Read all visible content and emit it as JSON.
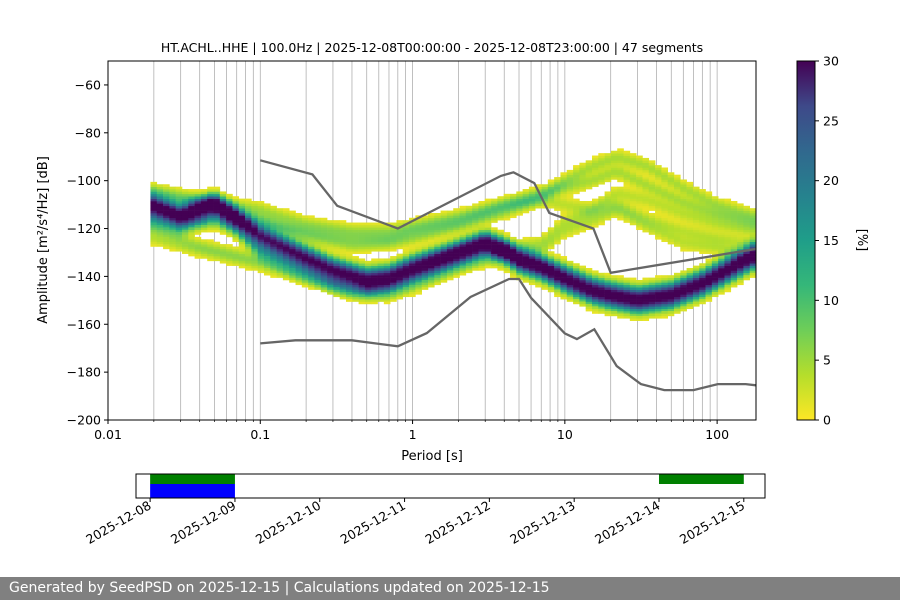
{
  "chart_data": [
    {
      "type": "heatmap",
      "title": "HT.ACHL..HHE | 100.0Hz | 2025-12-08T00:00:00 - 2025-12-08T23:00:00 | 47 segments",
      "xlabel": "Period [s]",
      "ylabel": "Amplitude [m²/s⁴/Hz] [dB]",
      "x_scale": "log",
      "xlim": [
        0.01,
        180
      ],
      "ylim": [
        -200,
        -50
      ],
      "x_ticks": [
        0.01,
        0.1,
        1,
        10,
        100
      ],
      "x_tick_labels": [
        "0.01",
        "0.1",
        "1",
        "10",
        "100"
      ],
      "y_ticks": [
        -60,
        -80,
        -100,
        -120,
        -140,
        -160,
        -180,
        -200
      ],
      "y_tick_labels": [
        "−60",
        "−80",
        "−100",
        "−120",
        "−140",
        "−160",
        "−180",
        "−200"
      ],
      "grid": "vertical",
      "colormap": "viridis_r",
      "colorbar": {
        "label": "[%]",
        "min": 0,
        "max": 30,
        "ticks": [
          0,
          5,
          10,
          15,
          20,
          25,
          30
        ],
        "tick_labels": [
          "0",
          "5",
          "10",
          "15",
          "20",
          "25",
          "30"
        ]
      },
      "density_ridges": [
        {
          "weight": 20,
          "width_db": 2.5,
          "points": [
            [
              0.02,
              -111
            ],
            [
              0.03,
              -115
            ],
            [
              0.05,
              -110
            ],
            [
              0.07,
              -116
            ],
            [
              0.1,
              -124
            ],
            [
              0.2,
              -133
            ],
            [
              0.3,
              -138
            ],
            [
              0.5,
              -142
            ],
            [
              0.7,
              -141
            ],
            [
              1,
              -137
            ],
            [
              2,
              -130
            ],
            [
              3,
              -126
            ],
            [
              4,
              -129
            ],
            [
              5,
              -133
            ],
            [
              7,
              -136
            ],
            [
              10,
              -141
            ],
            [
              15,
              -146
            ],
            [
              20,
              -148
            ],
            [
              30,
              -150
            ],
            [
              50,
              -148
            ],
            [
              80,
              -143
            ],
            [
              120,
              -137
            ],
            [
              180,
              -131
            ]
          ]
        },
        {
          "weight": 14,
          "width_db": 2.5,
          "points": [
            [
              0.02,
              -109
            ],
            [
              0.03,
              -113
            ],
            [
              0.05,
              -108
            ],
            [
              0.07,
              -114
            ],
            [
              0.1,
              -121
            ],
            [
              0.2,
              -130
            ],
            [
              0.3,
              -135
            ],
            [
              0.5,
              -139
            ],
            [
              0.7,
              -138
            ],
            [
              1,
              -134
            ],
            [
              2,
              -128
            ],
            [
              3,
              -124
            ],
            [
              4,
              -127
            ],
            [
              5,
              -131
            ],
            [
              7,
              -134
            ],
            [
              10,
              -138
            ],
            [
              15,
              -143
            ],
            [
              20,
              -145
            ],
            [
              30,
              -147
            ],
            [
              50,
              -145
            ],
            [
              80,
              -140
            ],
            [
              120,
              -134
            ],
            [
              180,
              -128
            ]
          ]
        },
        {
          "weight": 12,
          "width_db": 2.5,
          "points": [
            [
              0.02,
              -116
            ],
            [
              0.03,
              -119
            ],
            [
              0.05,
              -114
            ],
            [
              0.07,
              -120
            ],
            [
              0.1,
              -129
            ],
            [
              0.2,
              -137
            ],
            [
              0.3,
              -142
            ],
            [
              0.5,
              -145
            ],
            [
              0.7,
              -144
            ],
            [
              1,
              -140
            ],
            [
              2,
              -133
            ],
            [
              3,
              -129
            ],
            [
              4,
              -132
            ],
            [
              5,
              -136
            ],
            [
              7,
              -139
            ],
            [
              10,
              -144
            ],
            [
              15,
              -149
            ],
            [
              20,
              -151
            ],
            [
              30,
              -153
            ],
            [
              50,
              -151
            ],
            [
              80,
              -146
            ],
            [
              120,
              -140
            ],
            [
              180,
              -134
            ]
          ]
        },
        {
          "weight": 4,
          "width_db": 2,
          "points": [
            [
              0.02,
              -106
            ],
            [
              0.04,
              -110
            ],
            [
              0.1,
              -116
            ],
            [
              0.2,
              -123
            ],
            [
              0.4,
              -127
            ],
            [
              0.7,
              -126
            ],
            [
              1,
              -124
            ],
            [
              2,
              -119
            ],
            [
              4,
              -113
            ],
            [
              7,
              -107
            ],
            [
              10,
              -100
            ],
            [
              15,
              -94
            ],
            [
              22,
              -90
            ],
            [
              35,
              -94
            ],
            [
              60,
              -103
            ],
            [
              100,
              -110
            ],
            [
              180,
              -115
            ]
          ]
        },
        {
          "weight": 4,
          "width_db": 2,
          "points": [
            [
              0.02,
              -104
            ],
            [
              0.04,
              -108
            ],
            [
              0.1,
              -112
            ],
            [
              0.2,
              -118
            ],
            [
              0.4,
              -121
            ],
            [
              0.7,
              -121
            ],
            [
              1,
              -119
            ],
            [
              2,
              -115
            ],
            [
              4,
              -110
            ],
            [
              7,
              -105
            ],
            [
              10,
              -103
            ],
            [
              15,
              -100
            ],
            [
              22,
              -96
            ],
            [
              35,
              -102
            ],
            [
              60,
              -109
            ],
            [
              100,
              -114
            ],
            [
              180,
              -118
            ]
          ]
        },
        {
          "weight": 3,
          "width_db": 2,
          "points": [
            [
              0.02,
              -120
            ],
            [
              0.04,
              -127
            ],
            [
              0.1,
              -133
            ],
            [
              0.2,
              -140
            ],
            [
              0.4,
              -146
            ],
            [
              0.7,
              -145
            ],
            [
              1,
              -142
            ],
            [
              2,
              -134
            ],
            [
              4,
              -128
            ],
            [
              7,
              -126
            ],
            [
              10,
              -117
            ],
            [
              15,
              -113
            ],
            [
              22,
              -110
            ],
            [
              35,
              -116
            ],
            [
              60,
              -121
            ],
            [
              100,
              -124
            ],
            [
              180,
              -127
            ]
          ]
        },
        {
          "weight": 3,
          "width_db": 2,
          "points": [
            [
              0.02,
              -124
            ],
            [
              0.04,
              -129
            ],
            [
              0.1,
              -135
            ],
            [
              0.2,
              -141
            ],
            [
              0.4,
              -147
            ],
            [
              0.7,
              -148
            ],
            [
              1,
              -145
            ],
            [
              2,
              -137
            ],
            [
              4,
              -131
            ],
            [
              7,
              -129
            ],
            [
              10,
              -121
            ],
            [
              15,
              -117
            ],
            [
              22,
              -112
            ],
            [
              35,
              -119
            ],
            [
              60,
              -126
            ],
            [
              100,
              -128
            ],
            [
              180,
              -133
            ]
          ]
        },
        {
          "weight": 3,
          "width_db": 2,
          "points": [
            [
              0.02,
              -113
            ],
            [
              0.04,
              -117
            ],
            [
              0.1,
              -118
            ],
            [
              0.2,
              -121
            ],
            [
              0.4,
              -124
            ],
            [
              0.7,
              -124
            ],
            [
              1,
              -121
            ],
            [
              2,
              -117
            ],
            [
              4,
              -110
            ],
            [
              7,
              -108
            ],
            [
              10,
              -110
            ],
            [
              15,
              -112
            ],
            [
              22,
              -105
            ],
            [
              35,
              -108
            ],
            [
              60,
              -114
            ],
            [
              100,
              -118
            ],
            [
              180,
              -121
            ]
          ]
        }
      ],
      "nlnm": [
        [
          0.1,
          -168
        ],
        [
          0.17,
          -166.7
        ],
        [
          0.4,
          -166.7
        ],
        [
          0.8,
          -169.2
        ],
        [
          1.24,
          -163.7
        ],
        [
          2.4,
          -148.6
        ],
        [
          4.3,
          -141.1
        ],
        [
          5,
          -141.1
        ],
        [
          6,
          -149
        ],
        [
          10,
          -163.8
        ],
        [
          12,
          -166.2
        ],
        [
          15.6,
          -162.1
        ],
        [
          21.9,
          -177.5
        ],
        [
          31.6,
          -185
        ],
        [
          45,
          -187.5
        ],
        [
          70,
          -187.5
        ],
        [
          101,
          -185
        ],
        [
          154,
          -185
        ],
        [
          180,
          -185.5
        ]
      ],
      "nhnm": [
        [
          0.1,
          -91.5
        ],
        [
          0.22,
          -97.4
        ],
        [
          0.32,
          -110.5
        ],
        [
          0.8,
          -120
        ],
        [
          3.8,
          -98
        ],
        [
          4.6,
          -96.5
        ],
        [
          6.3,
          -101
        ],
        [
          7.9,
          -113.5
        ],
        [
          15.4,
          -120
        ],
        [
          20,
          -138.5
        ],
        [
          180,
          -128.5
        ]
      ]
    },
    {
      "type": "timeline",
      "x_tick_labels": [
        "2025-12-08",
        "2025-12-09",
        "2025-12-10",
        "2025-12-11",
        "2025-12-12",
        "2025-12-13",
        "2025-12-14",
        "2025-12-15"
      ],
      "range": [
        "2025-12-07T20:00",
        "2025-12-15T06:00"
      ],
      "bars": [
        {
          "row": "top",
          "color": "#008000",
          "start": "2025-12-08T00:00",
          "end": "2025-12-09T00:00"
        },
        {
          "row": "top",
          "color": "#008000",
          "start": "2025-12-14T00:00",
          "end": "2025-12-15T00:00"
        },
        {
          "row": "bottom",
          "color": "#0000ff",
          "start": "2025-12-08T00:00",
          "end": "2025-12-09T00:00"
        }
      ]
    }
  ],
  "footer": {
    "text": "Generated by SeedPSD on 2025-12-15 | Calculations updated on 2025-12-15"
  }
}
